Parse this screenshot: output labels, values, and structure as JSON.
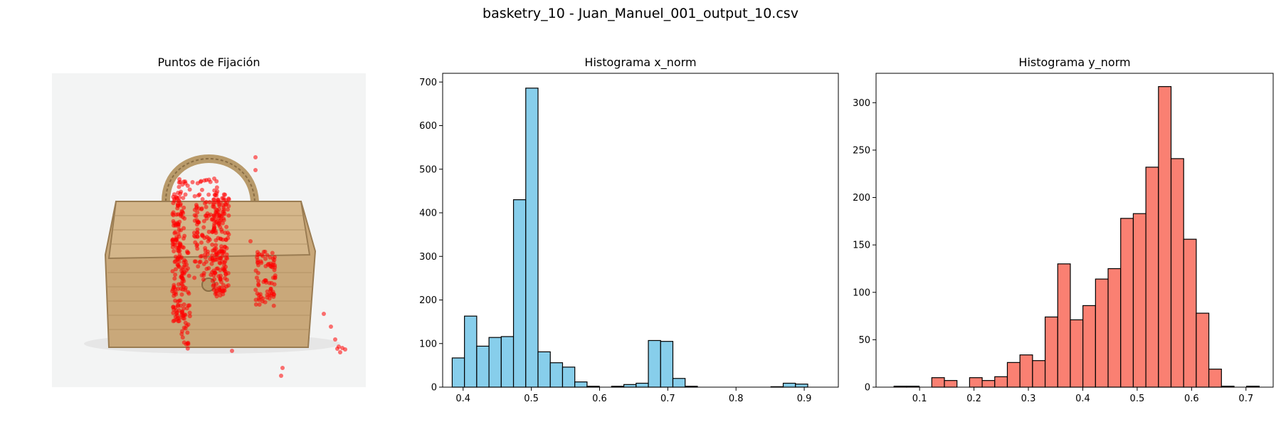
{
  "suptitle": "basketry_10 - Juan_Manuel_001_output_10.csv",
  "image_panel": {
    "title": "Puntos de Fijación",
    "photo_subject": "woven wicker handbag on light background",
    "fixation_color": "#ff0000"
  },
  "chart_data": [
    {
      "type": "bar",
      "title": "Histograma x_norm",
      "xlabel": "",
      "ylabel": "",
      "xlim": [
        0.37,
        0.95
      ],
      "ylim": [
        0,
        720
      ],
      "xticks": [
        0.4,
        0.5,
        0.6,
        0.7,
        0.8,
        0.9
      ],
      "xtick_labels": [
        "0.4",
        "0.5",
        "0.6",
        "0.7",
        "0.8",
        "0.9"
      ],
      "yticks": [
        0,
        100,
        200,
        300,
        400,
        500,
        600,
        700
      ],
      "ytick_labels": [
        "0",
        "100",
        "200",
        "300",
        "400",
        "500",
        "600",
        "700"
      ],
      "bin_start": 0.384,
      "bin_width": 0.01797,
      "values": [
        67,
        163,
        94,
        114,
        116,
        430,
        686,
        81,
        56,
        46,
        12,
        2,
        0,
        2,
        6,
        9,
        107,
        105,
        20,
        2,
        0,
        0,
        0,
        0,
        0,
        0,
        1,
        9,
        7
      ],
      "fill_color": "#87ceeb",
      "edge_color": "#000000"
    },
    {
      "type": "bar",
      "title": "Histograma y_norm",
      "xlabel": "",
      "ylabel": "",
      "xlim": [
        0.02,
        0.75
      ],
      "ylim": [
        0,
        331
      ],
      "xticks": [
        0.1,
        0.2,
        0.3,
        0.4,
        0.5,
        0.6,
        0.7
      ],
      "xtick_labels": [
        "0.1",
        "0.2",
        "0.3",
        "0.4",
        "0.5",
        "0.6",
        "0.7"
      ],
      "yticks": [
        0,
        50,
        100,
        150,
        200,
        250,
        300
      ],
      "ytick_labels": [
        "0",
        "50",
        "100",
        "150",
        "200",
        "250",
        "300"
      ],
      "bin_start": 0.053,
      "bin_width": 0.02315,
      "values": [
        1,
        1,
        0,
        10,
        7,
        0,
        10,
        7,
        11,
        26,
        34,
        28,
        74,
        130,
        71,
        86,
        114,
        125,
        178,
        183,
        232,
        317,
        241,
        156,
        78,
        19,
        1,
        0,
        1
      ],
      "fill_color": "#fa8072",
      "edge_color": "#000000"
    }
  ]
}
